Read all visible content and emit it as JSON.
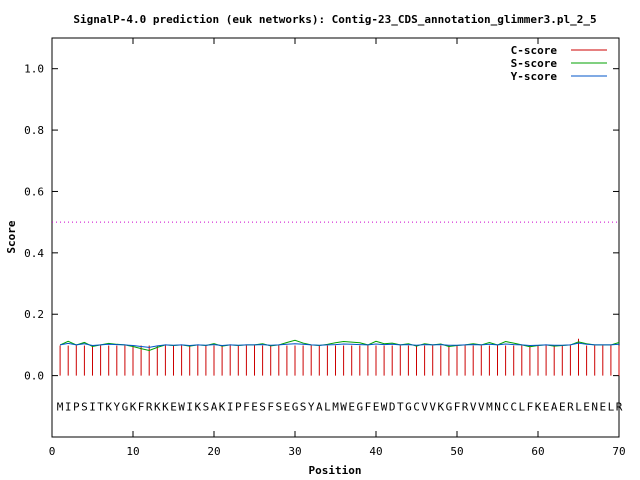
{
  "chart_data": {
    "type": "line",
    "title": "SignalP-4.0 prediction (euk networks): Contig-23_CDS_annotation_glimmer3.pl_2_5",
    "xlabel": "Position",
    "ylabel": "Score",
    "xlim": [
      0,
      70
    ],
    "ylim": [
      -0.2,
      1.1
    ],
    "x_ticks": [
      "0",
      "10",
      "20",
      "30",
      "40",
      "50",
      "60",
      "70"
    ],
    "y_ticks": [
      "0.0",
      "0.2",
      "0.4",
      "0.6",
      "0.8",
      "1.0"
    ],
    "legend_position": "top-right",
    "threshold": 0.5,
    "sequence": "MIPSITKYGKFRKKEWIKSAKIPFESFSEGSYALMWEGFEWDTGCVVKGFRVVMNCCLFKEAERLENELR",
    "colors": {
      "c_score": "#cc0000",
      "s_score": "#00a000",
      "y_score": "#0055c8",
      "threshold": "#cc00cc"
    },
    "series": [
      {
        "name": "C-score",
        "style": "impulses",
        "values": [
          0.098,
          0.098,
          0.098,
          0.098,
          0.098,
          0.098,
          0.098,
          0.098,
          0.098,
          0.098,
          0.098,
          0.098,
          0.098,
          0.098,
          0.098,
          0.098,
          0.098,
          0.098,
          0.098,
          0.098,
          0.098,
          0.098,
          0.098,
          0.098,
          0.098,
          0.098,
          0.098,
          0.098,
          0.098,
          0.098,
          0.098,
          0.098,
          0.098,
          0.098,
          0.098,
          0.098,
          0.098,
          0.098,
          0.098,
          0.098,
          0.098,
          0.098,
          0.098,
          0.098,
          0.098,
          0.098,
          0.098,
          0.098,
          0.098,
          0.098,
          0.098,
          0.098,
          0.098,
          0.098,
          0.098,
          0.098,
          0.098,
          0.098,
          0.098,
          0.098,
          0.098,
          0.098,
          0.098,
          0.098,
          0.12,
          0.098,
          0.098,
          0.098,
          0.098,
          0.098
        ]
      },
      {
        "name": "S-score",
        "style": "line",
        "values": [
          0.1,
          0.112,
          0.1,
          0.108,
          0.095,
          0.1,
          0.105,
          0.102,
          0.1,
          0.095,
          0.088,
          0.082,
          0.092,
          0.1,
          0.098,
          0.1,
          0.096,
          0.1,
          0.098,
          0.104,
          0.096,
          0.1,
          0.098,
          0.1,
          0.1,
          0.104,
          0.097,
          0.1,
          0.108,
          0.115,
          0.106,
          0.1,
          0.098,
          0.102,
          0.107,
          0.111,
          0.109,
          0.107,
          0.1,
          0.112,
          0.104,
          0.106,
          0.1,
          0.104,
          0.096,
          0.104,
          0.1,
          0.103,
          0.095,
          0.098,
          0.1,
          0.104,
          0.1,
          0.108,
          0.1,
          0.111,
          0.106,
          0.1,
          0.094,
          0.098,
          0.1,
          0.096,
          0.098,
          0.1,
          0.11,
          0.104,
          0.1,
          0.1,
          0.1,
          0.108
        ]
      },
      {
        "name": "Y-score",
        "style": "line",
        "values": [
          0.1,
          0.105,
          0.1,
          0.104,
          0.098,
          0.1,
          0.102,
          0.101,
          0.1,
          0.098,
          0.095,
          0.092,
          0.097,
          0.1,
          0.099,
          0.1,
          0.098,
          0.1,
          0.099,
          0.101,
          0.098,
          0.1,
          0.099,
          0.1,
          0.1,
          0.101,
          0.099,
          0.1,
          0.102,
          0.104,
          0.102,
          0.1,
          0.099,
          0.1,
          0.101,
          0.103,
          0.102,
          0.101,
          0.1,
          0.103,
          0.101,
          0.102,
          0.1,
          0.101,
          0.099,
          0.101,
          0.1,
          0.101,
          0.099,
          0.099,
          0.1,
          0.101,
          0.1,
          0.102,
          0.1,
          0.103,
          0.101,
          0.1,
          0.098,
          0.099,
          0.1,
          0.099,
          0.099,
          0.1,
          0.106,
          0.102,
          0.1,
          0.1,
          0.1,
          0.102
        ]
      }
    ]
  }
}
